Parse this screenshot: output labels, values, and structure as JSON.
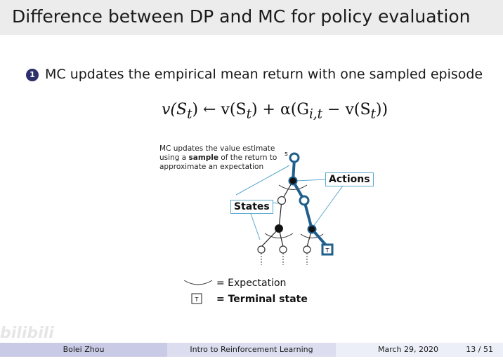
{
  "title": "Difference between DP and MC for policy evaluation",
  "bullet": {
    "number": "1",
    "text": "MC updates the empirical mean return with one sampled episode"
  },
  "equation": {
    "lhs": "v(S",
    "sub_t": "t",
    "arrow": ") ← v(S",
    "plus": ") + α(G",
    "sub_it": "i,t",
    "minus": " − v(S",
    "end": "))"
  },
  "diagram": {
    "note_line1": "MC updates the value estimate",
    "note_line2_pre": "using a ",
    "note_line2_bold": "sample",
    "note_line2_post": " of the return to",
    "note_line3": "approximate an expectation",
    "root_label": "s",
    "actions_label": "Actions",
    "states_label": "States",
    "terminal_glyph": "T",
    "highlight_color": "#1f5f8b",
    "callout_color": "#5aa8cc"
  },
  "legend": {
    "expectation": "= Expectation",
    "terminal_box": "T",
    "terminal": "= Terminal state"
  },
  "footer": {
    "author": "Bolei Zhou",
    "course": "Intro to Reinforcement Learning",
    "date": "March 29, 2020",
    "page": "13 / 51"
  },
  "watermark": "bilibili"
}
